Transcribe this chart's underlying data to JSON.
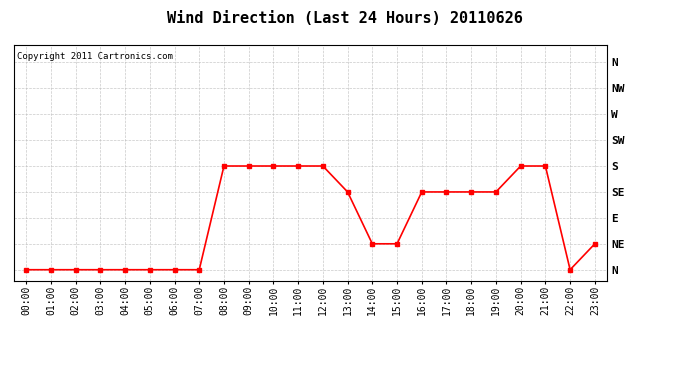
{
  "title": "Wind Direction (Last 24 Hours) 20110626",
  "copyright": "Copyright 2011 Cartronics.com",
  "line_color": "#ff0000",
  "background_color": "#ffffff",
  "plot_bg_color": "#ffffff",
  "grid_color": "#bbbbbb",
  "hours": [
    0,
    1,
    2,
    3,
    4,
    5,
    6,
    7,
    8,
    9,
    10,
    11,
    12,
    13,
    14,
    15,
    16,
    17,
    18,
    19,
    20,
    21,
    22,
    23
  ],
  "wind_dirs": [
    0,
    0,
    0,
    0,
    0,
    0,
    0,
    0,
    180,
    180,
    180,
    180,
    180,
    135,
    45,
    45,
    135,
    135,
    135,
    135,
    180,
    180,
    0,
    45
  ],
  "ytick_labels": [
    "N",
    "NE",
    "E",
    "SE",
    "S",
    "SW",
    "W",
    "NW",
    "N"
  ],
  "ytick_values": [
    0,
    45,
    90,
    135,
    180,
    225,
    270,
    315,
    360
  ],
  "ylim": [
    -20,
    390
  ],
  "title_fontsize": 11,
  "label_fontsize": 8,
  "tick_fontsize": 7,
  "copyright_fontsize": 6.5
}
